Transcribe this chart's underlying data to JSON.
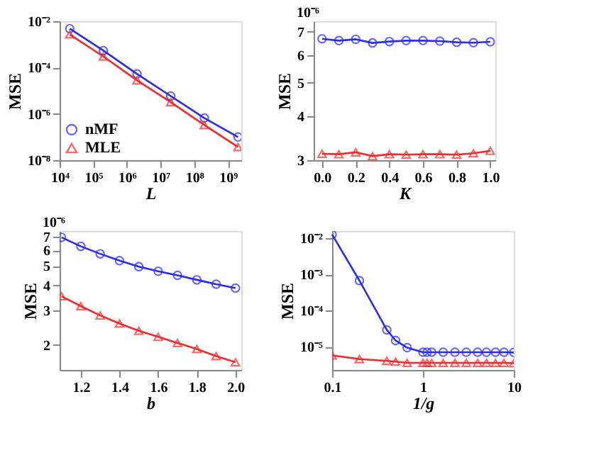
{
  "chart_data": [
    {
      "type": "line",
      "log": "xy",
      "xlabel": "L",
      "ylabel": "MSE",
      "legend": "bottom left",
      "grid": false,
      "x": [
        20000,
        200000,
        2000000,
        20000000,
        200000000,
        2000000000
      ],
      "xlim": [
        10000,
        2500000000
      ],
      "xticks": [
        {
          "value": 10000,
          "label": "10⁴"
        },
        {
          "value": 100000,
          "label": "10⁵"
        },
        {
          "value": 1000000,
          "label": "10⁶"
        },
        {
          "value": 10000000,
          "label": "10⁷"
        },
        {
          "value": 100000000,
          "label": "10⁸"
        },
        {
          "value": 1000000000,
          "label": "10⁹"
        }
      ],
      "ylim": [
        1e-08,
        0.01
      ],
      "yticks": [
        {
          "value": 1e-08,
          "label": "10⁻⁸"
        },
        {
          "value": 1e-06,
          "label": "10⁻⁶"
        },
        {
          "value": 0.0001,
          "label": "10⁻⁴"
        },
        {
          "value": 0.01,
          "label": "10⁻²"
        }
      ],
      "series": [
        {
          "name": "nMF",
          "color": "#2b2bf0",
          "marker": "circle",
          "values": [
            0.0048,
            0.00054,
            5.3e-05,
            5.9e-06,
            6.6e-07,
            1e-07
          ]
        },
        {
          "name": "MLE",
          "color": "#f02b2b",
          "marker": "triangle",
          "values": [
            0.0027,
            0.0003,
            2.8e-05,
            3.2e-06,
            3.3e-07,
            3.7e-08
          ]
        }
      ]
    },
    {
      "type": "line",
      "log": "y",
      "xlabel": "K",
      "ylabel": "MSE",
      "annotations": [
        "10⁻⁶"
      ],
      "grid": false,
      "x": [
        0,
        0.1,
        0.2,
        0.3,
        0.4,
        0.5,
        0.6,
        0.7,
        0.8,
        0.9,
        1.0
      ],
      "xlim": [
        -0.05,
        1.03
      ],
      "xticks": [
        {
          "value": 0,
          "label": "0.0"
        },
        0.2,
        0.4,
        0.6,
        0.8,
        {
          "value": 1.0,
          "label": "1.0"
        }
      ],
      "ylim": [
        3,
        7.5
      ],
      "yticks": [
        3,
        4,
        5,
        6,
        7
      ],
      "series": [
        {
          "color": "#2b2bf0",
          "marker": "circle",
          "values": [
            6.68,
            6.6,
            6.66,
            6.5,
            6.56,
            6.6,
            6.6,
            6.58,
            6.53,
            6.51,
            6.55
          ]
        },
        {
          "color": "#f02b2b",
          "marker": "triangle",
          "values": [
            3.13,
            3.12,
            3.16,
            3.08,
            3.12,
            3.11,
            3.12,
            3.12,
            3.11,
            3.14,
            3.19
          ]
        }
      ]
    },
    {
      "type": "line",
      "log": "y",
      "xlabel": "b",
      "ylabel": "MSE",
      "annotations": [
        "10⁻⁶"
      ],
      "grid": false,
      "x": [
        1.1,
        1.2,
        1.3,
        1.4,
        1.5,
        1.6,
        1.7,
        1.8,
        1.9,
        2.0
      ],
      "xlim": [
        1.09,
        2.03
      ],
      "xticks": [
        1.2,
        1.4,
        1.6,
        1.8,
        {
          "value": 2.0,
          "label": "2.0"
        }
      ],
      "ylim": [
        1.5,
        7.5
      ],
      "yticks": [
        2,
        3,
        4,
        5,
        6,
        7
      ],
      "series": [
        {
          "color": "#2b2bf0",
          "marker": "circle",
          "values": [
            6.97,
            6.28,
            5.76,
            5.32,
            4.96,
            4.71,
            4.49,
            4.26,
            4.05,
            3.87
          ]
        },
        {
          "color": "#f02b2b",
          "marker": "triangle",
          "values": [
            3.52,
            3.14,
            2.82,
            2.57,
            2.36,
            2.2,
            2.05,
            1.91,
            1.76,
            1.64
          ]
        }
      ]
    },
    {
      "type": "line",
      "log": "xy",
      "xlabel": "1/g",
      "ylabel": "MSE",
      "grid": false,
      "x": [
        0.1,
        0.2,
        0.4,
        0.5,
        0.67,
        1,
        1.11,
        1.25,
        1.67,
        2.25,
        3,
        4,
        5,
        6.3,
        7.8,
        10
      ],
      "xlim": [
        0.1,
        10
      ],
      "xticks": [
        0.1,
        1,
        10
      ],
      "ylim": [
        2.3e-06,
        0.016
      ],
      "yticks": [
        {
          "value": 1e-05,
          "label": "10⁻⁵"
        },
        {
          "value": 0.0001,
          "label": "10⁻⁴"
        },
        {
          "value": 0.001,
          "label": "10⁻³"
        },
        {
          "value": 0.01,
          "label": "10⁻²"
        }
      ],
      "series": [
        {
          "color": "#2b2bf0",
          "marker": "circle",
          "values": [
            0.0128,
            0.00068,
            2.95e-05,
            1.5e-05,
            9.5e-06,
            7.1e-06,
            7.1e-06,
            7.1e-06,
            7.1e-06,
            7.1e-06,
            7.1e-06,
            7.1e-06,
            7.1e-06,
            7.1e-06,
            7.1e-06,
            7e-06
          ]
        },
        {
          "color": "#f02b2b",
          "marker": "triangle",
          "values": [
            5.8e-06,
            4.6e-06,
            4.1e-06,
            3.9e-06,
            3.6e-06,
            3.6e-06,
            3.6e-06,
            3.6e-06,
            3.6e-06,
            3.6e-06,
            3.6e-06,
            3.6e-06,
            3.6e-06,
            3.6e-06,
            3.6e-06,
            3.55e-06
          ]
        }
      ]
    }
  ]
}
